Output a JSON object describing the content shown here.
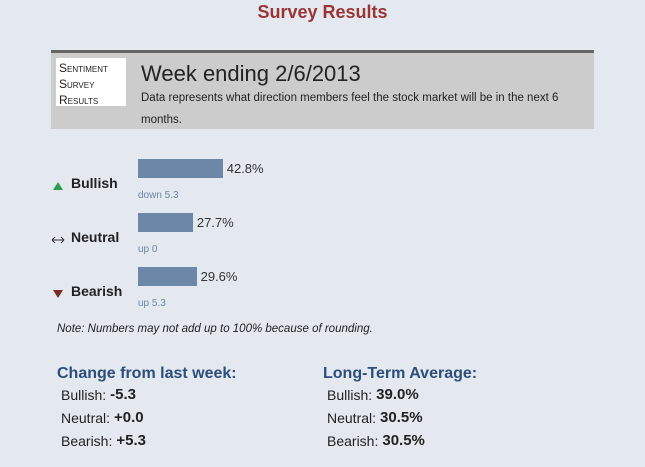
{
  "title": "Survey Results",
  "header": {
    "label": "Sentiment Survey Results",
    "heading": "Week ending 2/6/2013",
    "description": "Data represents what direction members feel the stock market will be in the next 6 months."
  },
  "sentiment": [
    {
      "name": "Bullish",
      "value": 42.8,
      "value_label": "42.8%",
      "change": "down 5.3"
    },
    {
      "name": "Neutral",
      "value": 27.7,
      "value_label": "27.7%",
      "change": "up 0"
    },
    {
      "name": "Bearish",
      "value": 29.6,
      "value_label": "29.6%",
      "change": "up 5.3"
    }
  ],
  "note": "Note: Numbers may not add up to 100% because of rounding.",
  "change": {
    "title": "Change from last week:",
    "rows": [
      {
        "label": "Bullish:",
        "value": "-5.3"
      },
      {
        "label": "Neutral:",
        "value": "+0.0"
      },
      {
        "label": "Bearish:",
        "value": "+5.3"
      }
    ]
  },
  "average": {
    "title": "Long-Term Average:",
    "rows": [
      {
        "label": "Bullish:",
        "value": "39.0%"
      },
      {
        "label": "Neutral:",
        "value": "30.5%"
      },
      {
        "label": "Bearish:",
        "value": "30.5%"
      }
    ]
  }
}
